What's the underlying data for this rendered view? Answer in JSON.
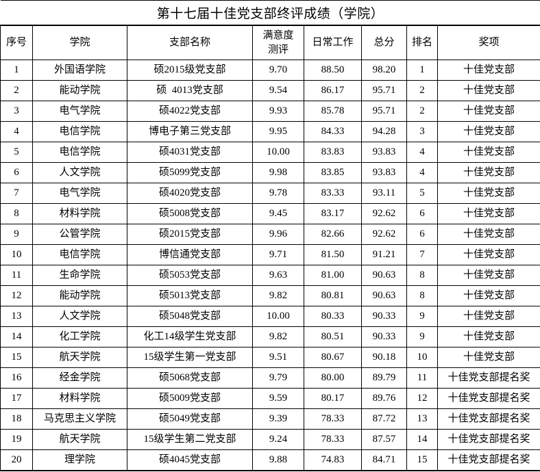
{
  "title": "第十七届十佳党支部终评成绩（学院）",
  "colors": {
    "background": "#ffffff",
    "text": "#000000",
    "border": "#000000"
  },
  "table": {
    "headers": [
      "序号",
      "学院",
      "支部名称",
      "满意度\n测评",
      "日常工作",
      "总分",
      "排名",
      "奖项"
    ],
    "rows": [
      {
        "no": "1",
        "college": "外国语学院",
        "branch": "硕2015级党支部",
        "satisfaction": "9.70",
        "daily": "88.50",
        "total": "98.20",
        "rank": "1",
        "award": "十佳党支部"
      },
      {
        "no": "2",
        "college": "能动学院",
        "branch": "硕  4013党支部",
        "satisfaction": "9.54",
        "daily": "86.17",
        "total": "95.71",
        "rank": "2",
        "award": "十佳党支部"
      },
      {
        "no": "3",
        "college": "电气学院",
        "branch": "硕4022党支部",
        "satisfaction": "9.93",
        "daily": "85.78",
        "total": "95.71",
        "rank": "2",
        "award": "十佳党支部"
      },
      {
        "no": "4",
        "college": "电信学院",
        "branch": "博电子第三党支部",
        "satisfaction": "9.95",
        "daily": "84.33",
        "total": "94.28",
        "rank": "3",
        "award": "十佳党支部"
      },
      {
        "no": "5",
        "college": "电信学院",
        "branch": "硕4031党支部",
        "satisfaction": "10.00",
        "daily": "83.83",
        "total": "93.83",
        "rank": "4",
        "award": "十佳党支部"
      },
      {
        "no": "6",
        "college": "人文学院",
        "branch": "硕5099党支部",
        "satisfaction": "9.98",
        "daily": "83.85",
        "total": "93.83",
        "rank": "4",
        "award": "十佳党支部"
      },
      {
        "no": "7",
        "college": "电气学院",
        "branch": "硕4020党支部",
        "satisfaction": "9.78",
        "daily": "83.33",
        "total": "93.11",
        "rank": "5",
        "award": "十佳党支部"
      },
      {
        "no": "8",
        "college": "材料学院",
        "branch": "硕5008党支部",
        "satisfaction": "9.45",
        "daily": "83.17",
        "total": "92.62",
        "rank": "6",
        "award": "十佳党支部"
      },
      {
        "no": "9",
        "college": "公管学院",
        "branch": "硕2015党支部",
        "satisfaction": "9.96",
        "daily": "82.66",
        "total": "92.62",
        "rank": "6",
        "award": "十佳党支部"
      },
      {
        "no": "10",
        "college": "电信学院",
        "branch": "博信通党支部",
        "satisfaction": "9.71",
        "daily": "81.50",
        "total": "91.21",
        "rank": "7",
        "award": "十佳党支部"
      },
      {
        "no": "11",
        "college": "生命学院",
        "branch": "硕5053党支部",
        "satisfaction": "9.63",
        "daily": "81.00",
        "total": "90.63",
        "rank": "8",
        "award": "十佳党支部"
      },
      {
        "no": "12",
        "college": "能动学院",
        "branch": "硕5013党支部",
        "satisfaction": "9.82",
        "daily": "80.81",
        "total": "90.63",
        "rank": "8",
        "award": "十佳党支部"
      },
      {
        "no": "13",
        "college": "人文学院",
        "branch": "硕5048党支部",
        "satisfaction": "10.00",
        "daily": "80.33",
        "total": "90.33",
        "rank": "9",
        "award": "十佳党支部"
      },
      {
        "no": "14",
        "college": "化工学院",
        "branch": "化工14级学生党支部",
        "satisfaction": "9.82",
        "daily": "80.51",
        "total": "90.33",
        "rank": "9",
        "award": "十佳党支部"
      },
      {
        "no": "15",
        "college": "航天学院",
        "branch": "15级学生第一党支部",
        "satisfaction": "9.51",
        "daily": "80.67",
        "total": "90.18",
        "rank": "10",
        "award": "十佳党支部"
      },
      {
        "no": "16",
        "college": "经金学院",
        "branch": "硕5068党支部",
        "satisfaction": "9.79",
        "daily": "80.00",
        "total": "89.79",
        "rank": "11",
        "award": "十佳党支部提名奖"
      },
      {
        "no": "17",
        "college": "材料学院",
        "branch": "硕5009党支部",
        "satisfaction": "9.59",
        "daily": "80.17",
        "total": "89.76",
        "rank": "12",
        "award": "十佳党支部提名奖"
      },
      {
        "no": "18",
        "college": "马克思主义学院",
        "branch": "硕5049党支部",
        "satisfaction": "9.39",
        "daily": "78.33",
        "total": "87.72",
        "rank": "13",
        "award": "十佳党支部提名奖"
      },
      {
        "no": "19",
        "college": "航天学院",
        "branch": "15级学生第二党支部",
        "satisfaction": "9.24",
        "daily": "78.33",
        "total": "87.57",
        "rank": "14",
        "award": "十佳党支部提名奖"
      },
      {
        "no": "20",
        "college": "理学院",
        "branch": "硕4045党支部",
        "satisfaction": "9.88",
        "daily": "74.83",
        "total": "84.71",
        "rank": "15",
        "award": "十佳党支部提名奖"
      }
    ]
  }
}
